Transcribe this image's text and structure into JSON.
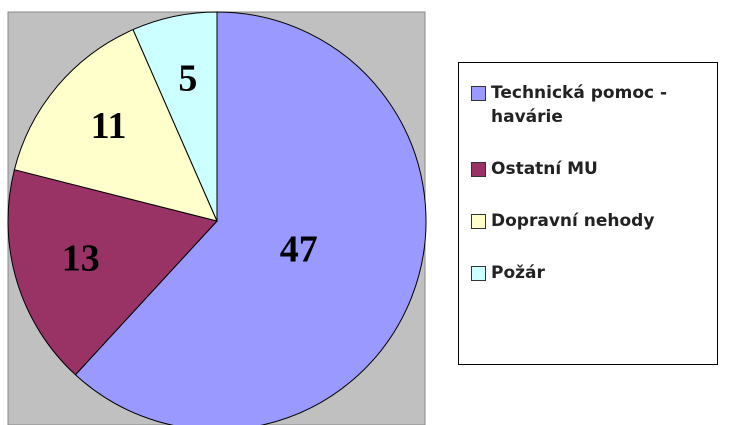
{
  "chart_data": {
    "type": "pie",
    "categories": [
      "Technická pomoc - havárie",
      "Ostatní MU",
      "Dopravní nehody",
      "Požár"
    ],
    "values": [
      47,
      13,
      11,
      5
    ],
    "colors": [
      "#9999ff",
      "#993366",
      "#ffffcc",
      "#ccffff"
    ],
    "legend": "right"
  }
}
